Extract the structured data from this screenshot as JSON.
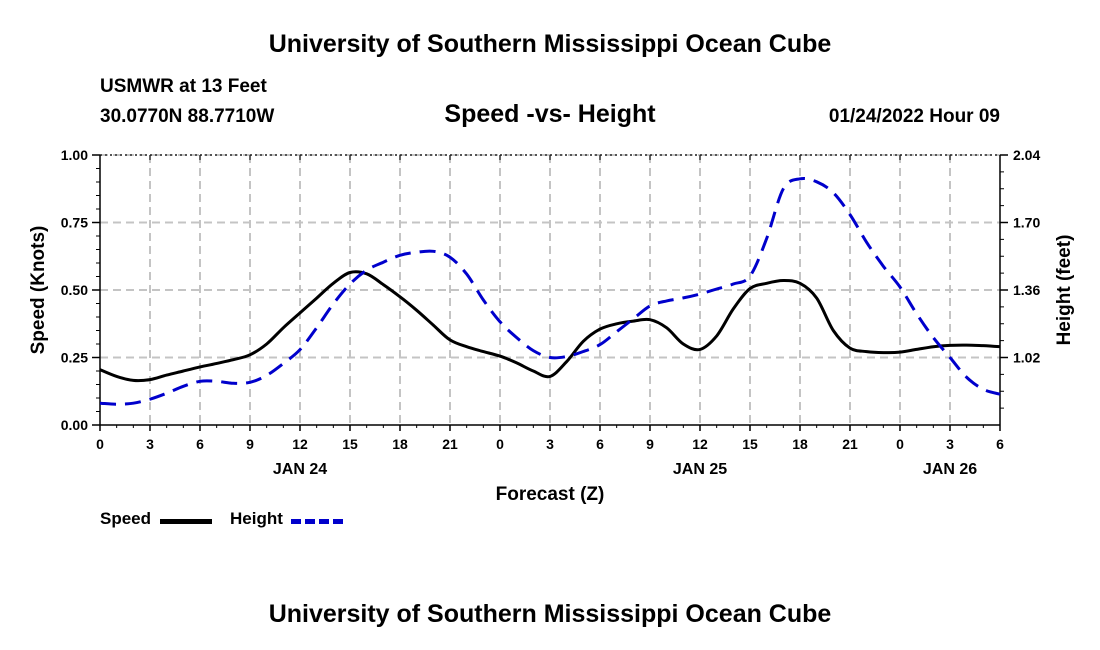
{
  "header": {
    "title": "University of Southern Mississippi Ocean Cube",
    "station": "USMWR at 13 Feet",
    "coordinates": "30.0770N  88.7710W",
    "chart_title": "Speed -vs- Height",
    "datetime": "01/24/2022 Hour 09"
  },
  "footer": {
    "title": "University of Southern Mississippi Ocean Cube"
  },
  "legend": [
    {
      "name": "Speed",
      "color": "#000000"
    },
    {
      "name": "Height",
      "color": "#0000cc"
    }
  ],
  "chart_data": {
    "type": "line",
    "title": "Speed -vs- Height",
    "xlabel": "Forecast (Z)",
    "ylabel": "Speed (Knots)",
    "y2label": "Height (feet)",
    "grid": true,
    "x_range_hours": [
      0,
      54
    ],
    "x_ticks": [
      {
        "h": 0,
        "label": "0"
      },
      {
        "h": 3,
        "label": "3"
      },
      {
        "h": 6,
        "label": "6"
      },
      {
        "h": 9,
        "label": "9"
      },
      {
        "h": 12,
        "label": "12"
      },
      {
        "h": 15,
        "label": "15"
      },
      {
        "h": 18,
        "label": "18"
      },
      {
        "h": 21,
        "label": "21"
      },
      {
        "h": 24,
        "label": "0"
      },
      {
        "h": 27,
        "label": "3"
      },
      {
        "h": 30,
        "label": "6"
      },
      {
        "h": 33,
        "label": "9"
      },
      {
        "h": 36,
        "label": "12"
      },
      {
        "h": 39,
        "label": "15"
      },
      {
        "h": 42,
        "label": "18"
      },
      {
        "h": 45,
        "label": "21"
      },
      {
        "h": 48,
        "label": "0"
      },
      {
        "h": 51,
        "label": "3"
      },
      {
        "h": 54,
        "label": "6"
      }
    ],
    "date_labels": [
      {
        "h": 12,
        "label": "JAN 24"
      },
      {
        "h": 36,
        "label": "JAN 25"
      },
      {
        "h": 51,
        "label": "JAN 26"
      }
    ],
    "y_left": {
      "min": 0,
      "max": 1,
      "ticks": [
        "0.00",
        "0.25",
        "0.50",
        "0.75",
        "1.00"
      ]
    },
    "y_right": {
      "min": 0.68,
      "max": 2.04,
      "ticks": [
        "1.02",
        "1.36",
        "1.70",
        "2.04"
      ],
      "tick_values": [
        1.02,
        1.36,
        1.7,
        2.04
      ]
    },
    "series": [
      {
        "name": "Speed",
        "axis": "left",
        "color": "#000000",
        "style": "solid",
        "points": [
          [
            0,
            0.205
          ],
          [
            1,
            0.18
          ],
          [
            2,
            0.165
          ],
          [
            3,
            0.168
          ],
          [
            4,
            0.185
          ],
          [
            5,
            0.2
          ],
          [
            6,
            0.215
          ],
          [
            7,
            0.228
          ],
          [
            8,
            0.242
          ],
          [
            9,
            0.26
          ],
          [
            10,
            0.3
          ],
          [
            11,
            0.36
          ],
          [
            12,
            0.415
          ],
          [
            13,
            0.47
          ],
          [
            14,
            0.525
          ],
          [
            15,
            0.565
          ],
          [
            16,
            0.56
          ],
          [
            17,
            0.52
          ],
          [
            18,
            0.475
          ],
          [
            19,
            0.425
          ],
          [
            20,
            0.37
          ],
          [
            21,
            0.315
          ],
          [
            22,
            0.29
          ],
          [
            23,
            0.272
          ],
          [
            24,
            0.255
          ],
          [
            25,
            0.23
          ],
          [
            26,
            0.2
          ],
          [
            27,
            0.18
          ],
          [
            28,
            0.235
          ],
          [
            29,
            0.31
          ],
          [
            30,
            0.355
          ],
          [
            31,
            0.375
          ],
          [
            32,
            0.385
          ],
          [
            33,
            0.39
          ],
          [
            34,
            0.36
          ],
          [
            35,
            0.3
          ],
          [
            36,
            0.28
          ],
          [
            37,
            0.33
          ],
          [
            38,
            0.43
          ],
          [
            39,
            0.505
          ],
          [
            40,
            0.525
          ],
          [
            41,
            0.535
          ],
          [
            42,
            0.525
          ],
          [
            43,
            0.47
          ],
          [
            44,
            0.35
          ],
          [
            45,
            0.285
          ],
          [
            46,
            0.272
          ],
          [
            47,
            0.268
          ],
          [
            48,
            0.27
          ],
          [
            49,
            0.28
          ],
          [
            50,
            0.29
          ],
          [
            51,
            0.295
          ],
          [
            52,
            0.296
          ],
          [
            53,
            0.294
          ],
          [
            54,
            0.29
          ]
        ]
      },
      {
        "name": "Height",
        "axis": "right",
        "color": "#0000cc",
        "style": "dashed",
        "points": [
          [
            0,
            0.79
          ],
          [
            1,
            0.785
          ],
          [
            2,
            0.79
          ],
          [
            3,
            0.81
          ],
          [
            4,
            0.84
          ],
          [
            5,
            0.875
          ],
          [
            6,
            0.9
          ],
          [
            7,
            0.9
          ],
          [
            8,
            0.89
          ],
          [
            9,
            0.895
          ],
          [
            10,
            0.93
          ],
          [
            11,
            0.99
          ],
          [
            12,
            1.06
          ],
          [
            13,
            1.17
          ],
          [
            14,
            1.29
          ],
          [
            15,
            1.39
          ],
          [
            16,
            1.46
          ],
          [
            17,
            1.5
          ],
          [
            18,
            1.535
          ],
          [
            19,
            1.55
          ],
          [
            20,
            1.555
          ],
          [
            21,
            1.525
          ],
          [
            22,
            1.44
          ],
          [
            23,
            1.31
          ],
          [
            24,
            1.2
          ],
          [
            25,
            1.12
          ],
          [
            26,
            1.055
          ],
          [
            27,
            1.02
          ],
          [
            28,
            1.025
          ],
          [
            29,
            1.05
          ],
          [
            30,
            1.085
          ],
          [
            31,
            1.15
          ],
          [
            32,
            1.215
          ],
          [
            33,
            1.28
          ],
          [
            34,
            1.305
          ],
          [
            35,
            1.32
          ],
          [
            36,
            1.34
          ],
          [
            37,
            1.365
          ],
          [
            38,
            1.39
          ],
          [
            39,
            1.43
          ],
          [
            40,
            1.62
          ],
          [
            41,
            1.87
          ],
          [
            42,
            1.92
          ],
          [
            43,
            1.905
          ],
          [
            44,
            1.85
          ],
          [
            45,
            1.74
          ],
          [
            46,
            1.6
          ],
          [
            47,
            1.48
          ],
          [
            48,
            1.375
          ],
          [
            49,
            1.24
          ],
          [
            50,
            1.12
          ],
          [
            51,
            1.02
          ],
          [
            52,
            0.92
          ],
          [
            53,
            0.86
          ],
          [
            54,
            0.835
          ]
        ]
      }
    ]
  }
}
